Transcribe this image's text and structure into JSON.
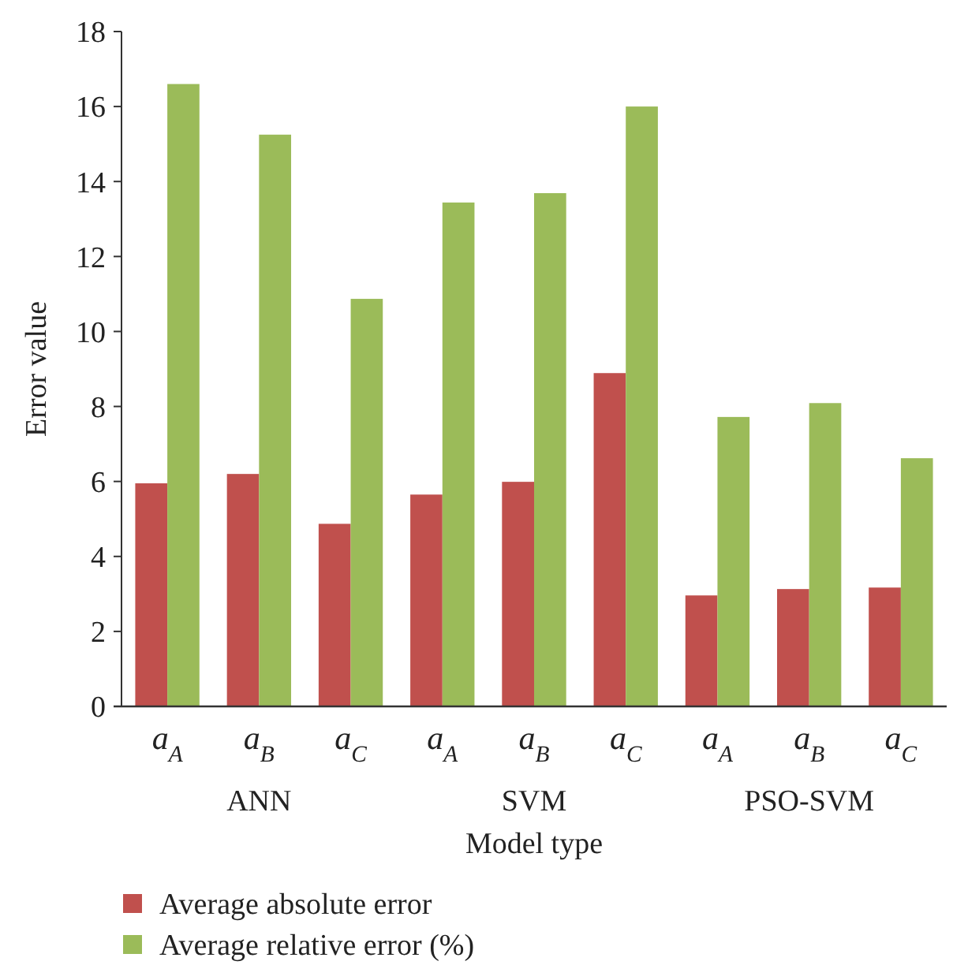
{
  "chart_data": {
    "type": "bar",
    "xlabel": "Model type",
    "ylabel": "Error value",
    "categories": [
      "a$_{A}$",
      "a$_{B}$",
      "a$_{C}$",
      "a$_{A}$",
      "a$_{B}$",
      "a$_{C}$",
      "a$_{A}$",
      "a$_{B}$",
      "a$_{C}$"
    ],
    "series": [
      {
        "name": "Average absolute error",
        "color": "#c0504d",
        "values": [
          5.95,
          6.2,
          4.87,
          5.65,
          5.99,
          8.89,
          2.96,
          3.13,
          3.17
        ]
      },
      {
        "name": "Average relative error (%)",
        "color": "#9bbb59",
        "values": [
          16.6,
          15.25,
          10.87,
          13.44,
          13.69,
          16.0,
          7.72,
          8.09,
          6.62
        ]
      }
    ],
    "annotations": [
      "ANN",
      "SVM",
      "PSO-SVM"
    ],
    "ylim": [
      0,
      18
    ],
    "yticks": [
      0,
      2,
      4,
      6,
      8,
      10,
      12,
      14,
      16,
      18
    ],
    "grid": false,
    "legend": "bottom"
  }
}
